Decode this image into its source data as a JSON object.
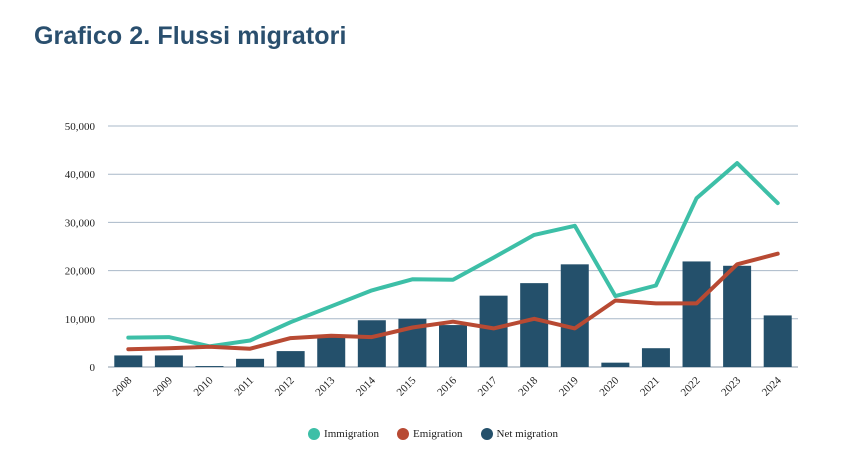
{
  "page": {
    "title": "Grafico 2. Flussi migratori"
  },
  "colors": {
    "title": "#2a4f6e",
    "immigration": "#3dbfa7",
    "emigration": "#b84a33",
    "net_migration": "#24506b",
    "gridline": "#a9b8c8",
    "axis": "#8a9aa8"
  },
  "chart_data": {
    "type": "bar",
    "title": "",
    "xlabel": "",
    "ylabel": "",
    "categories": [
      "2008",
      "2009",
      "2010",
      "2011",
      "2012",
      "2013",
      "2014",
      "2015",
      "2016",
      "2017",
      "2018",
      "2019",
      "2020",
      "2021",
      "2022",
      "2023",
      "2024"
    ],
    "ylim": [
      0,
      50000
    ],
    "yticks": [
      0,
      10000,
      20000,
      30000,
      40000,
      50000
    ],
    "ytick_labels": [
      "0",
      "10,000",
      "20,000",
      "30,000",
      "40,000",
      "50,000"
    ],
    "grid": true,
    "legend_position": "bottom",
    "series": [
      {
        "name": "Net migration",
        "kind": "bar",
        "values": [
          2400,
          2400,
          200,
          1700,
          3300,
          6200,
          9700,
          10000,
          8700,
          14800,
          17400,
          21300,
          900,
          3900,
          21900,
          21000,
          10700
        ]
      },
      {
        "name": "Immigration",
        "kind": "line",
        "values": [
          6100,
          6200,
          4300,
          5500,
          9300,
          12600,
          15900,
          18200,
          18100,
          22700,
          27400,
          29300,
          14700,
          16900,
          35000,
          42300,
          34000
        ]
      },
      {
        "name": "Emigration",
        "kind": "line",
        "values": [
          3700,
          3900,
          4200,
          3800,
          6000,
          6500,
          6200,
          8200,
          9400,
          8000,
          10000,
          8000,
          13800,
          13200,
          13200,
          21300,
          23500
        ]
      }
    ]
  },
  "legend": {
    "items": [
      "Immigration",
      "Emigration",
      "Net migration"
    ]
  }
}
